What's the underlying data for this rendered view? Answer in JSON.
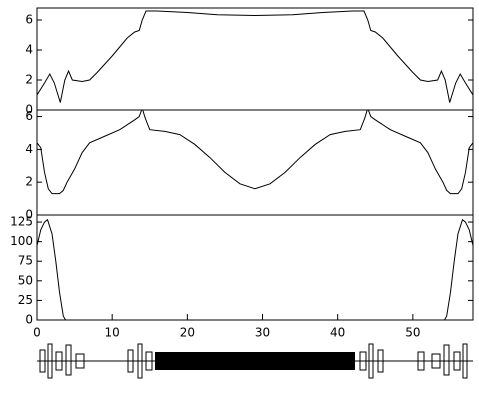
{
  "chart_data": [
    {
      "type": "line",
      "x": [
        0,
        1,
        1.7,
        2.3,
        3.1,
        3.7,
        4.2,
        4.7,
        6,
        7,
        8,
        10,
        12,
        13,
        13.6,
        14,
        14.5,
        16,
        20,
        24,
        29,
        34,
        38,
        42,
        43.5,
        44,
        44.4,
        45,
        46,
        48,
        50,
        51,
        52,
        53.3,
        53.8,
        54.3,
        54.9,
        55.7,
        56.3,
        57,
        58
      ],
      "values": [
        1.0,
        1.8,
        2.4,
        1.8,
        0.5,
        2.0,
        2.6,
        2.0,
        1.9,
        2.0,
        2.5,
        3.6,
        4.8,
        5.2,
        5.3,
        6.0,
        6.6,
        6.6,
        6.5,
        6.35,
        6.3,
        6.35,
        6.5,
        6.6,
        6.6,
        6.0,
        5.3,
        5.2,
        4.8,
        3.6,
        2.5,
        2.0,
        1.9,
        2.0,
        2.6,
        2.0,
        0.5,
        1.8,
        2.4,
        1.8,
        1.0
      ],
      "xlim": [
        0,
        58
      ],
      "ylim": [
        0,
        6.8
      ],
      "yticks": [
        0,
        2,
        4,
        6
      ],
      "color": "#000000"
    },
    {
      "type": "line",
      "x": [
        0,
        0.5,
        1,
        1.5,
        2,
        3,
        3.5,
        4,
        5,
        6,
        7,
        9,
        11,
        13,
        13.6,
        14,
        14.4,
        15,
        17,
        19,
        21,
        23,
        25,
        27,
        29,
        31,
        33,
        35,
        37,
        39,
        41,
        43,
        43.6,
        44,
        44.4,
        45,
        47,
        49,
        51,
        52,
        53,
        54,
        54.5,
        55,
        56,
        56.5,
        57,
        57.5,
        58
      ],
      "values": [
        4.4,
        4.1,
        2.6,
        1.6,
        1.3,
        1.3,
        1.5,
        2.0,
        2.8,
        3.8,
        4.4,
        4.8,
        5.2,
        5.8,
        6.0,
        6.5,
        5.9,
        5.2,
        5.1,
        4.9,
        4.3,
        3.5,
        2.6,
        1.9,
        1.6,
        1.9,
        2.6,
        3.5,
        4.3,
        4.9,
        5.1,
        5.2,
        5.9,
        6.5,
        6.0,
        5.8,
        5.2,
        4.8,
        4.4,
        3.8,
        2.8,
        2.0,
        1.5,
        1.3,
        1.3,
        1.6,
        2.6,
        4.1,
        4.4
      ],
      "xlim": [
        0,
        58
      ],
      "ylim": [
        0,
        6.4
      ],
      "yticks": [
        0,
        2,
        4,
        6
      ],
      "color": "#000000"
    },
    {
      "type": "line",
      "x": [
        0,
        0.5,
        1,
        1.4,
        2,
        2.5,
        3,
        3.5,
        3.8,
        29,
        54.2,
        54.5,
        55,
        55.5,
        56,
        56.6,
        57,
        57.5,
        58
      ],
      "values": [
        95,
        115,
        125,
        128,
        110,
        75,
        35,
        5,
        0,
        null,
        0,
        5,
        35,
        75,
        110,
        128,
        125,
        115,
        95
      ],
      "xlim": [
        0,
        58
      ],
      "ylim": [
        0,
        134
      ],
      "yticks": [
        0,
        25,
        50,
        75,
        100,
        125
      ],
      "xticks": [
        0,
        10,
        20,
        30,
        40,
        50
      ],
      "color": "#000000"
    }
  ]
}
